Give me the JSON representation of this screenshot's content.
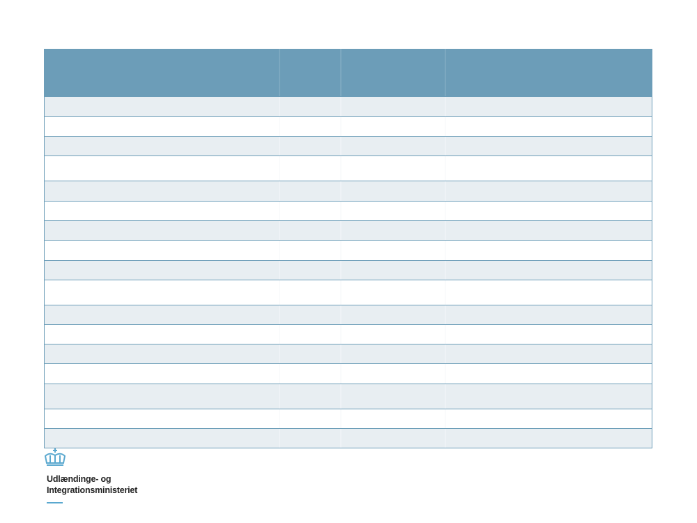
{
  "logo": {
    "lines": [
      "Udlændinge- og",
      "Integrationsministeriet"
    ]
  }
}
